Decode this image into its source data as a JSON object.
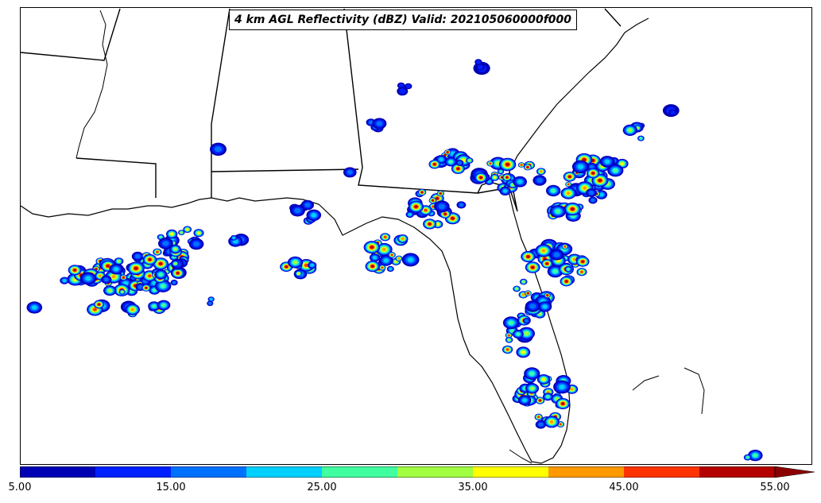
{
  "map": {
    "title": "4 km AGL Reflectivity (dBZ) Valid: 202105060000f000",
    "variable": "Reflectivity",
    "units": "dBZ",
    "level": "4 km AGL",
    "valid": "202105060000f000",
    "projection": "regional map - US Gulf Coast and Florida",
    "features": [
      "coastline",
      "state-boundaries",
      "reflectivity-echoes"
    ],
    "colorbar": {
      "min": 5,
      "max": 55,
      "extend": "max",
      "tick_labels": [
        "5.00",
        "15.00",
        "25.00",
        "35.00",
        "45.00",
        "55.00"
      ],
      "colors": [
        "#0000b4",
        "#0020ff",
        "#0070ff",
        "#00d0ff",
        "#40ffa0",
        "#a0ff40",
        "#ffff00",
        "#ff9900",
        "#ff3300",
        "#b40000",
        "#8b0000"
      ]
    },
    "icons": {
      "extend_arrow": "triangle-right"
    }
  }
}
